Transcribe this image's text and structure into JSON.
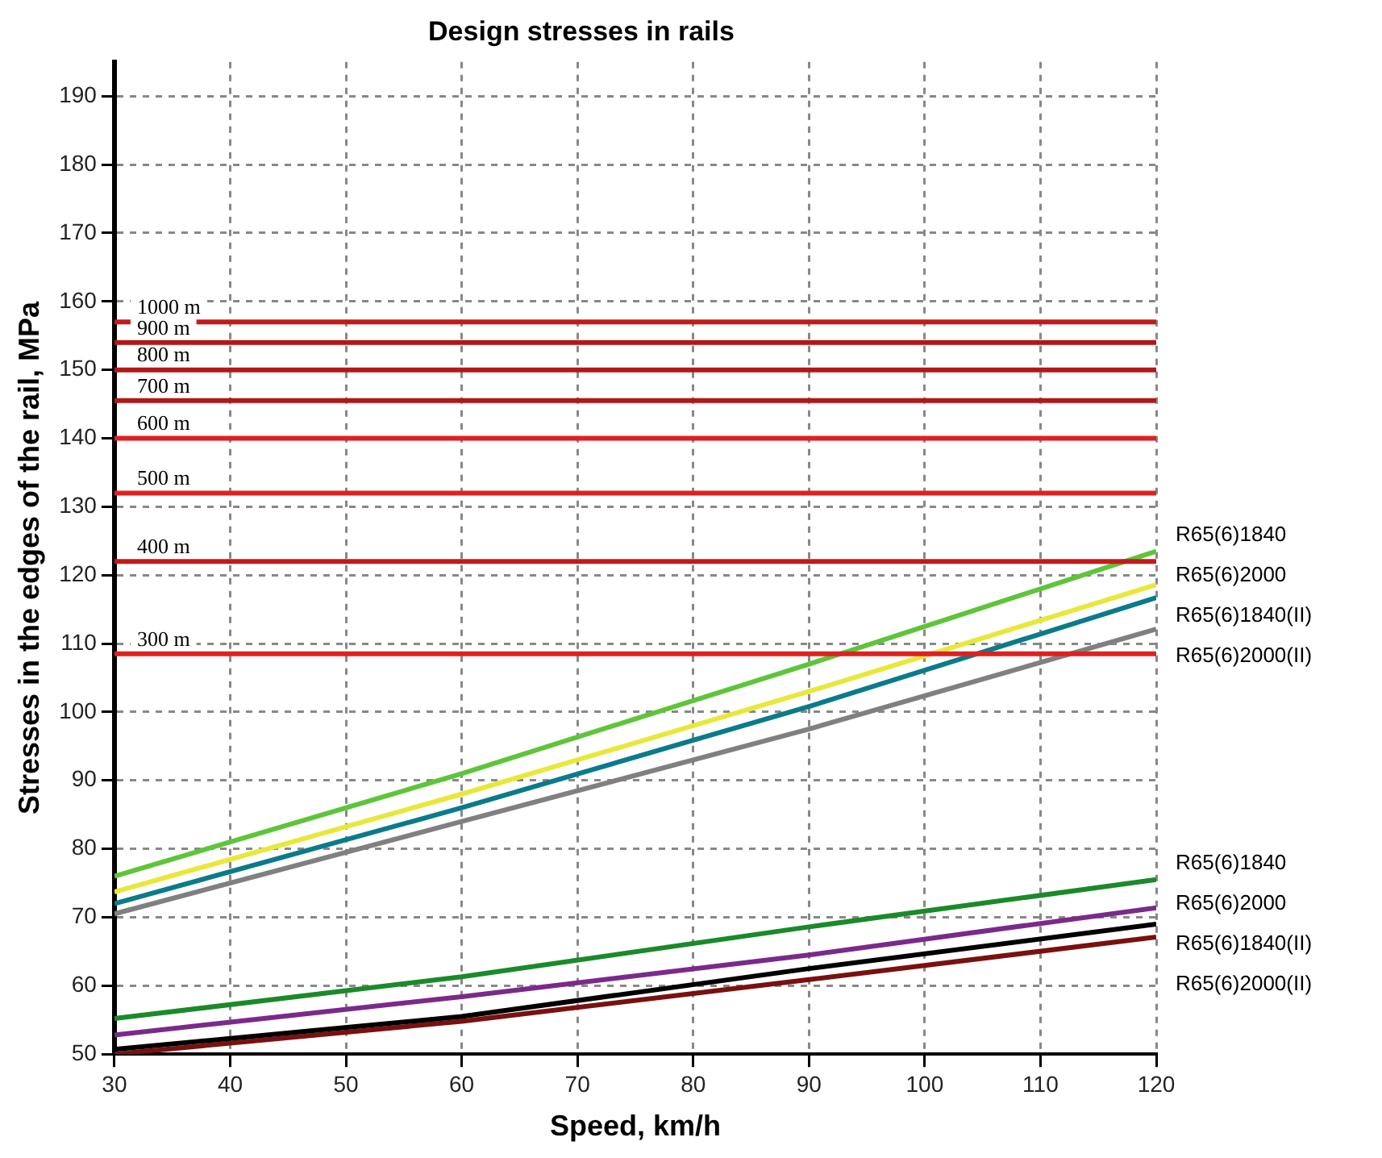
{
  "chart_data": {
    "type": "line",
    "title": "Design stresses in rails",
    "xlabel": "Speed, km/h",
    "ylabel": "Stresses in the edges of the rail, MPa",
    "x": [
      30,
      60,
      90,
      120
    ],
    "xlim": [
      30,
      120
    ],
    "ylim": [
      50,
      195
    ],
    "xticks": [
      30,
      40,
      50,
      60,
      70,
      80,
      90,
      100,
      110,
      120
    ],
    "yticks": [
      50,
      60,
      70,
      80,
      90,
      100,
      110,
      120,
      130,
      140,
      150,
      160,
      170,
      180,
      190
    ],
    "grid": true,
    "marker": "none",
    "line_style": "solid",
    "series": [
      {
        "name": "R65(6)1840",
        "color": "#5ec53a",
        "values": [
          76,
          91,
          107,
          123.5
        ]
      },
      {
        "name": "R65(6)2000",
        "color": "#e8e83c",
        "values": [
          73.7,
          88,
          103,
          118.6
        ]
      },
      {
        "name": "R65(6)1840(II)",
        "color": "#0a7b8a",
        "values": [
          72,
          86,
          100.8,
          116.7
        ]
      },
      {
        "name": "R65(6)2000(II)",
        "color": "#808080",
        "values": [
          70.5,
          84,
          97.5,
          112.1
        ]
      },
      {
        "name": "R65(6)1840",
        "color": "#1a8a2a",
        "values": [
          55.2,
          61.3,
          68.6,
          75.5
        ]
      },
      {
        "name": "R65(6)2000",
        "color": "#7a2a8a",
        "values": [
          52.8,
          58.4,
          64.5,
          71.4
        ]
      },
      {
        "name": "R65(6)1840(II)",
        "color": "#000000",
        "values": [
          50.7,
          55.5,
          62.5,
          69
        ]
      },
      {
        "name": "R65(6)2000(II)",
        "color": "#7a1010",
        "values": [
          50,
          54.8,
          60.9,
          67.1
        ]
      }
    ],
    "ref_lines": [
      {
        "axis": "y",
        "value": 157,
        "label": "1000 m",
        "color": "#c41a1a"
      },
      {
        "axis": "y",
        "value": 154,
        "label": "900 m",
        "color": "#b01818"
      },
      {
        "axis": "y",
        "value": 150,
        "label": "800 m",
        "color": "#b01818"
      },
      {
        "axis": "y",
        "value": 145.5,
        "label": "700 m",
        "color": "#b01818"
      },
      {
        "axis": "y",
        "value": 140,
        "label": "600 m",
        "color": "#e02020"
      },
      {
        "axis": "y",
        "value": 132,
        "label": "500 m",
        "color": "#e02020"
      },
      {
        "axis": "y",
        "value": 122,
        "label": "400 m",
        "color": "#c41a1a"
      },
      {
        "axis": "y",
        "value": 108.5,
        "label": "300 m",
        "color": "#e02020"
      }
    ]
  }
}
